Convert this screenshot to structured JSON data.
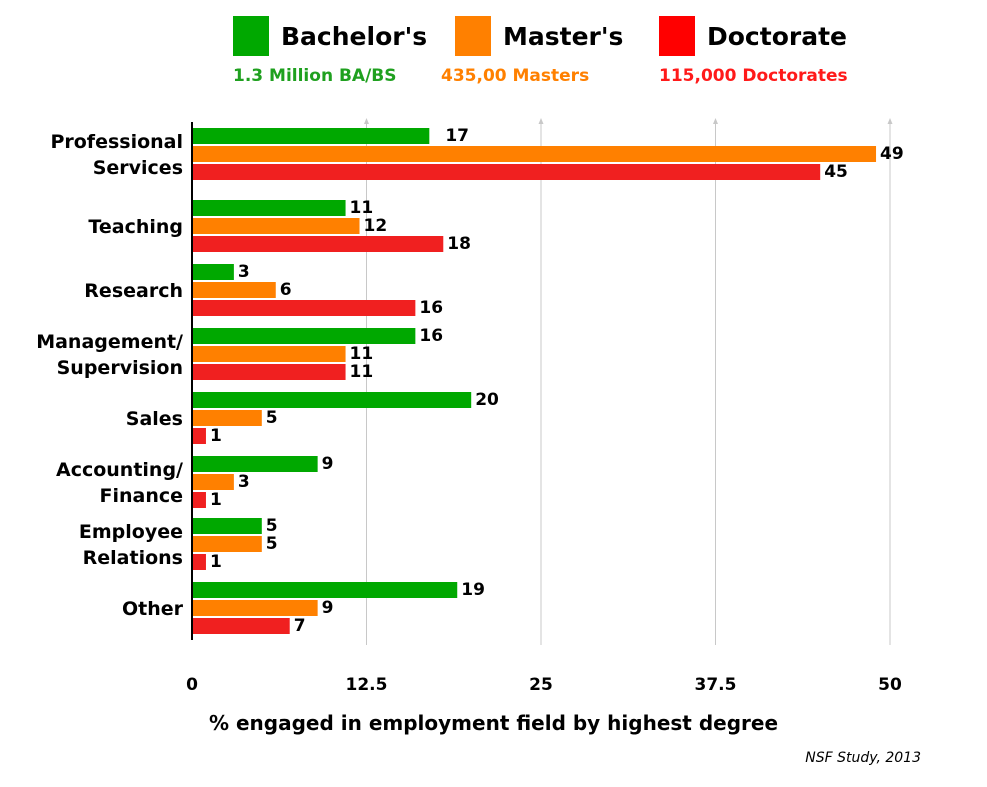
{
  "legend": {
    "items": [
      {
        "label": "Bachelor's",
        "color": "#00a800"
      },
      {
        "label": "Master's",
        "color": "#ff8000"
      },
      {
        "label": "Doctorate",
        "color": "#ff0000"
      }
    ]
  },
  "totals": [
    {
      "text": "1.3 Million BA/BS",
      "color": "#1fa01f"
    },
    {
      "text": "435,00 Masters",
      "color": "#ff8000"
    },
    {
      "text": "115,000 Doctorates",
      "color": "#ff1a1a"
    }
  ],
  "chart_data": {
    "type": "bar",
    "orientation": "horizontal",
    "categories": [
      "Professional\nServices",
      "Teaching",
      "Research",
      "Management/\nSupervision",
      "Sales",
      "Accounting/\nFinance",
      "Employee\nRelations",
      "Other"
    ],
    "series": [
      {
        "name": "Bachelor's",
        "color": "#00a800",
        "values": [
          17,
          11,
          3,
          16,
          20,
          9,
          5,
          19
        ]
      },
      {
        "name": "Master's",
        "color": "#ff8000",
        "values": [
          49,
          12,
          6,
          11,
          5,
          3,
          5,
          9
        ]
      },
      {
        "name": "Doctorate",
        "color": "#f02020",
        "values": [
          45,
          18,
          16,
          11,
          1,
          1,
          1,
          7
        ]
      }
    ],
    "xlim": [
      0,
      50
    ],
    "xticks": [
      "0",
      "12.5",
      "25",
      "37.5",
      "50"
    ],
    "xtick_values": [
      0,
      12.5,
      25,
      37.5,
      50
    ],
    "xlabel": "% engaged in employment field by highest degree",
    "grid": true,
    "legend_position": "top"
  },
  "source": "NSF Study, 2013"
}
